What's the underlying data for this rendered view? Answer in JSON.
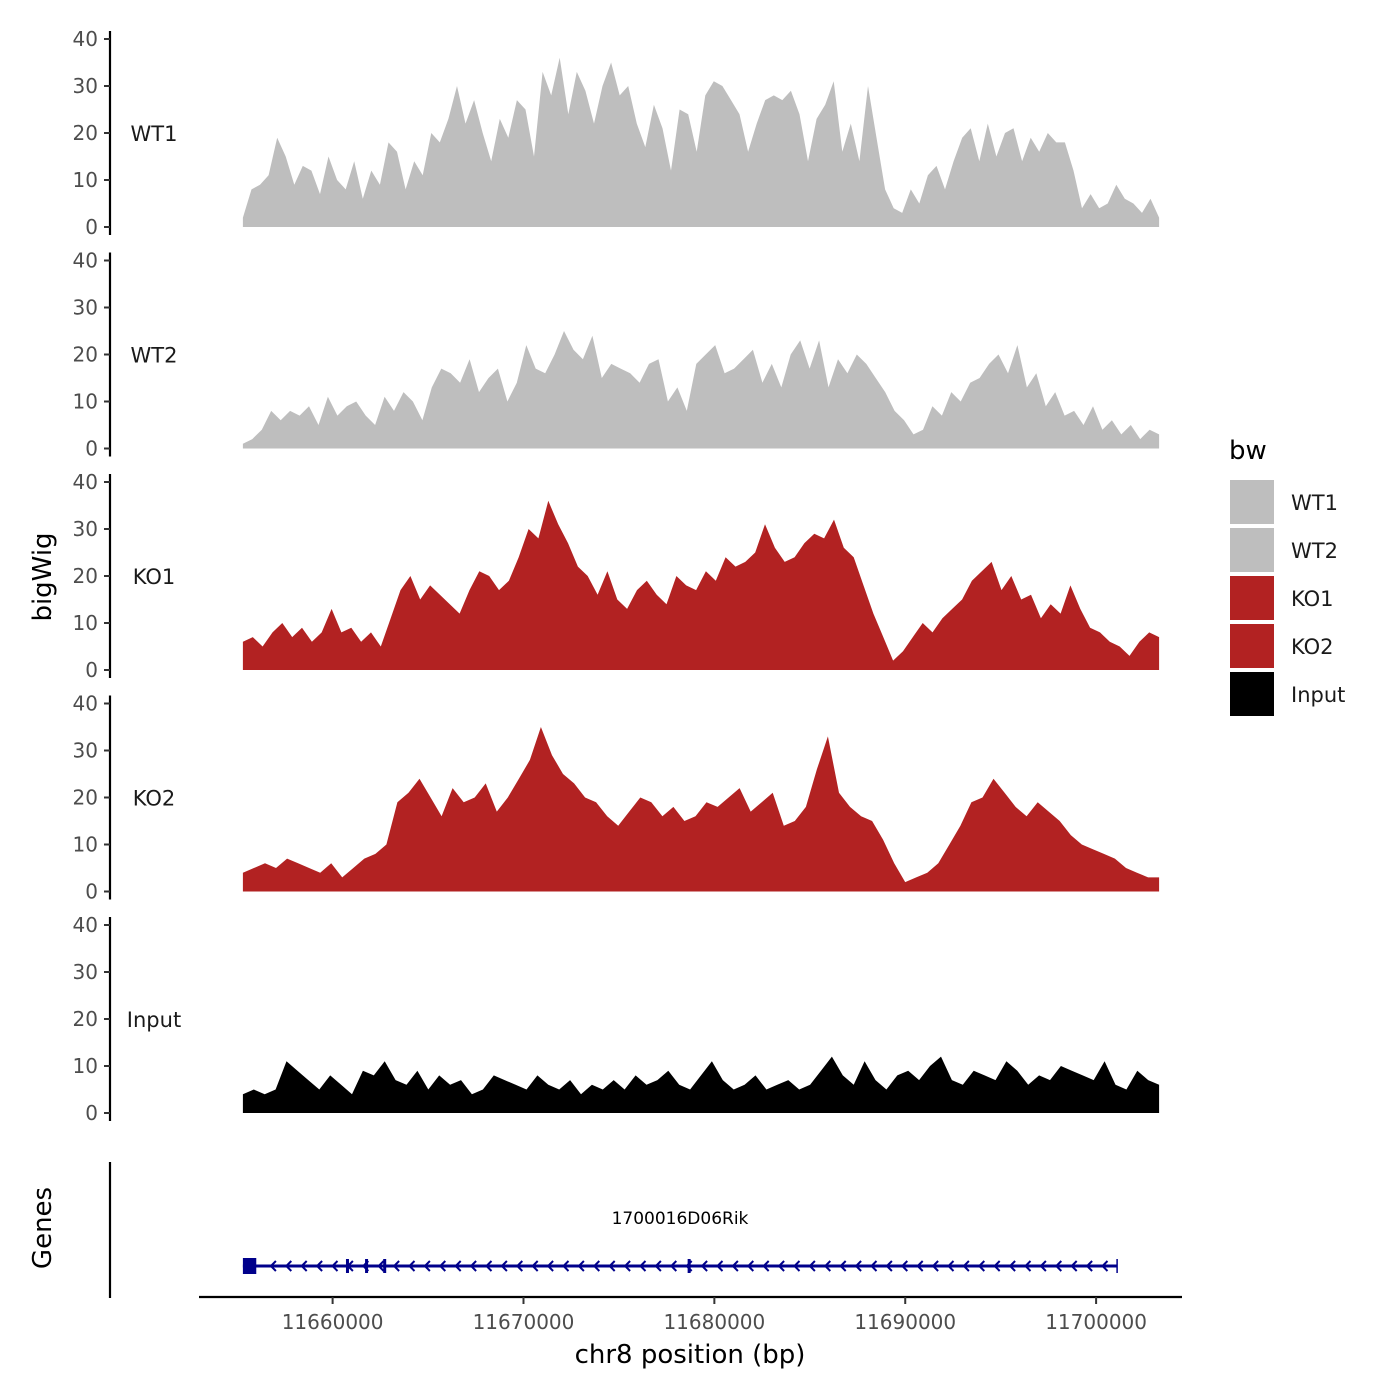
{
  "chart_data": {
    "type": "area",
    "chromosome": "chr8",
    "xlabel": "chr8 position (bp)",
    "ylabel": "bigWig",
    "genes_label": "Genes",
    "xlim": [
      11653000,
      11704500
    ],
    "x_range": [
      11655300,
      11703300
    ],
    "xticks": [
      11660000,
      11670000,
      11680000,
      11690000,
      11700000
    ],
    "ylim": [
      0,
      40
    ],
    "yticks": [
      0,
      10,
      20,
      30,
      40
    ],
    "legend": {
      "title": "bw",
      "position": "right",
      "entries": [
        {
          "label": "WT1",
          "color": "#bebebe"
        },
        {
          "label": "WT2",
          "color": "#bebebe"
        },
        {
          "label": "KO1",
          "color": "#b22222"
        },
        {
          "label": "KO2",
          "color": "#b22222"
        },
        {
          "label": "Input",
          "color": "#000000"
        }
      ]
    },
    "series": [
      {
        "name": "WT1",
        "color": "#bebebe",
        "values": [
          2,
          8,
          9,
          11,
          19,
          15,
          9,
          13,
          12,
          7,
          15,
          10,
          8,
          14,
          6,
          12,
          9,
          18,
          16,
          8,
          14,
          11,
          20,
          18,
          23,
          30,
          22,
          27,
          20,
          14,
          23,
          19,
          27,
          25,
          15,
          33,
          28,
          36,
          24,
          33,
          29,
          22,
          30,
          35,
          28,
          30,
          22,
          17,
          26,
          21,
          12,
          25,
          24,
          16,
          28,
          31,
          30,
          27,
          24,
          16,
          22,
          27,
          28,
          27,
          29,
          24,
          14,
          23,
          26,
          31,
          16,
          22,
          14,
          30,
          19,
          8,
          4,
          3,
          8,
          5,
          11,
          13,
          8,
          14,
          19,
          21,
          14,
          22,
          15,
          20,
          21,
          14,
          19,
          16,
          20,
          18,
          18,
          12,
          4,
          7,
          4,
          5,
          9,
          6,
          5,
          3,
          6,
          2
        ]
      },
      {
        "name": "WT2",
        "color": "#bebebe",
        "values": [
          1,
          2,
          4,
          8,
          6,
          8,
          7,
          9,
          5,
          11,
          7,
          9,
          10,
          7,
          5,
          11,
          8,
          12,
          10,
          6,
          13,
          17,
          16,
          14,
          19,
          12,
          15,
          17,
          10,
          14,
          22,
          17,
          16,
          20,
          25,
          21,
          19,
          24,
          15,
          18,
          17,
          16,
          14,
          18,
          19,
          10,
          13,
          8,
          18,
          20,
          22,
          16,
          17,
          19,
          21,
          14,
          18,
          13,
          20,
          23,
          17,
          23,
          13,
          19,
          16,
          20,
          18,
          15,
          12,
          8,
          6,
          3,
          4,
          9,
          7,
          12,
          10,
          14,
          15,
          18,
          20,
          16,
          22,
          13,
          16,
          9,
          12,
          7,
          8,
          5,
          9,
          4,
          6,
          3,
          5,
          2,
          4,
          3
        ]
      },
      {
        "name": "KO1",
        "color": "#b22222",
        "values": [
          6,
          7,
          5,
          8,
          10,
          7,
          9,
          6,
          8,
          13,
          8,
          9,
          6,
          8,
          5,
          11,
          17,
          20,
          15,
          18,
          16,
          14,
          12,
          17,
          21,
          20,
          17,
          19,
          24,
          30,
          28,
          36,
          31,
          27,
          22,
          20,
          16,
          21,
          15,
          13,
          17,
          19,
          16,
          14,
          20,
          18,
          17,
          21,
          19,
          24,
          22,
          23,
          25,
          31,
          26,
          23,
          24,
          27,
          29,
          28,
          32,
          26,
          24,
          18,
          12,
          7,
          2,
          4,
          7,
          10,
          8,
          11,
          13,
          15,
          19,
          21,
          23,
          17,
          20,
          15,
          16,
          11,
          14,
          12,
          18,
          13,
          9,
          8,
          6,
          5,
          3,
          6,
          8,
          7
        ]
      },
      {
        "name": "KO2",
        "color": "#b22222",
        "values": [
          4,
          5,
          6,
          5,
          7,
          6,
          5,
          4,
          6,
          3,
          5,
          7,
          8,
          10,
          19,
          21,
          24,
          20,
          16,
          22,
          19,
          20,
          23,
          17,
          20,
          24,
          28,
          35,
          29,
          25,
          23,
          20,
          19,
          16,
          14,
          17,
          20,
          19,
          16,
          18,
          15,
          16,
          19,
          18,
          20,
          22,
          17,
          19,
          21,
          14,
          15,
          18,
          26,
          33,
          21,
          18,
          16,
          15,
          11,
          6,
          2,
          3,
          4,
          6,
          10,
          14,
          19,
          20,
          24,
          21,
          18,
          16,
          19,
          17,
          15,
          12,
          10,
          9,
          8,
          7,
          5,
          4,
          3,
          3
        ]
      },
      {
        "name": "Input",
        "color": "#000000",
        "values": [
          4,
          5,
          4,
          5,
          11,
          9,
          7,
          5,
          8,
          6,
          4,
          9,
          8,
          11,
          7,
          6,
          9,
          5,
          8,
          6,
          7,
          4,
          5,
          8,
          7,
          6,
          5,
          8,
          6,
          5,
          7,
          4,
          6,
          5,
          7,
          5,
          8,
          6,
          7,
          9,
          6,
          5,
          8,
          11,
          7,
          5,
          6,
          8,
          5,
          6,
          7,
          5,
          6,
          9,
          12,
          8,
          6,
          11,
          7,
          5,
          8,
          9,
          7,
          10,
          12,
          7,
          6,
          9,
          8,
          7,
          11,
          9,
          6,
          8,
          7,
          10,
          9,
          8,
          7,
          11,
          6,
          5,
          9,
          7,
          6
        ]
      }
    ],
    "gene": {
      "name": "1700016D06Rik",
      "strand": "-",
      "start": 11655300,
      "end": 11701100,
      "color": "#00008b",
      "exons": [
        [
          11655300,
          11656000
        ],
        [
          11660700,
          11660800
        ],
        [
          11661700,
          11661800
        ],
        [
          11662650,
          11662800
        ],
        [
          11678600,
          11678700
        ]
      ]
    }
  }
}
